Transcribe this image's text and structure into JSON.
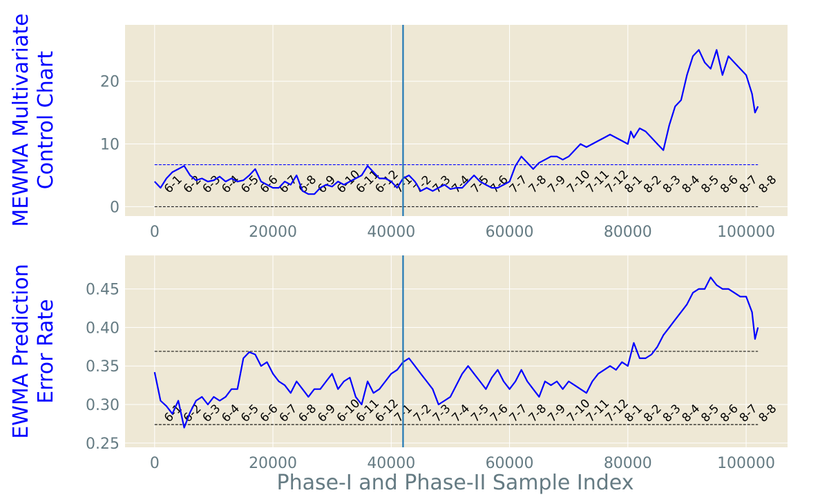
{
  "figure": {
    "xlabel": "Phase-I and Phase-II Sample Index",
    "month_labels": [
      "6-1",
      "6-2",
      "6-3",
      "6-4",
      "6-5",
      "6-6",
      "6-7",
      "6-8",
      "6-9",
      "6-10",
      "6-11",
      "6-12",
      "7-1",
      "7-2",
      "7-3",
      "7-4",
      "7-5",
      "7-6",
      "7-7",
      "7-8",
      "7-9",
      "7-10",
      "7-11",
      "7-12",
      "8-1",
      "8-2",
      "8-3",
      "8-4",
      "8-5",
      "8-6",
      "8-7",
      "8-8"
    ],
    "colors": {
      "background": "#eee8d5",
      "grid": "#ffffff",
      "series": "#0000ff",
      "phase_line": "#1f77b4",
      "tick_text": "#657b83",
      "ylabel_text": "#0000ff"
    }
  },
  "chart_data": [
    {
      "type": "line",
      "ylabel": "MEWMA Multivariate\nControl Chart",
      "xlim": [
        -5000,
        107000
      ],
      "ylim": [
        -1.5,
        29
      ],
      "xticks": [
        0,
        20000,
        40000,
        60000,
        80000,
        100000
      ],
      "xtick_labels": [
        "0",
        "20000",
        "40000",
        "60000",
        "80000",
        "100000"
      ],
      "yticks": [
        0,
        10,
        20
      ],
      "ytick_labels": [
        "0",
        "10",
        "20"
      ],
      "grid": true,
      "phase_boundary_x": 42000,
      "reference_lines": [
        {
          "y": 6.7,
          "style": "dashed",
          "color": "#0000ff",
          "x_range": [
            0,
            102000
          ]
        },
        {
          "y": 0,
          "style": "dashed",
          "color": "#000000",
          "x_range": [
            0,
            102000
          ]
        }
      ],
      "month_label_y": 2.5,
      "series": [
        {
          "x": [
            0,
            1000,
            2000,
            3000,
            4000,
            5000,
            6000,
            7000,
            8000,
            9000,
            10000,
            11000,
            12000,
            13000,
            14000,
            15000,
            16000,
            17000,
            18000,
            19000,
            20000,
            21000,
            22000,
            23000,
            24000,
            25000,
            26000,
            27000,
            28000,
            29000,
            30000,
            31000,
            32000,
            33000,
            34000,
            35000,
            36000,
            37000,
            38000,
            39000,
            40000,
            41000,
            42000,
            43000,
            44000,
            45000,
            46000,
            47000,
            48000,
            49000,
            50000,
            51000,
            52000,
            53000,
            54000,
            55000,
            56000,
            57000,
            58000,
            59000,
            60000,
            61000,
            62000,
            63000,
            64000,
            65000,
            66000,
            67000,
            68000,
            69000,
            70000,
            71000,
            72000,
            73000,
            74000,
            75000,
            76000,
            77000,
            78000,
            79000,
            80000,
            80500,
            81000,
            82000,
            83000,
            84000,
            85000,
            86000,
            87000,
            88000,
            89000,
            90000,
            91000,
            92000,
            93000,
            94000,
            95000,
            96000,
            97000,
            98000,
            99000,
            100000,
            101000,
            101500,
            102000
          ],
          "values": [
            4,
            3,
            4.5,
            5.5,
            6,
            6.5,
            5,
            4.2,
            4.5,
            4,
            4.2,
            4.8,
            4,
            4.5,
            4,
            4.2,
            5,
            6,
            4,
            3.5,
            3,
            3,
            4,
            3.5,
            5,
            2.5,
            2,
            2,
            3,
            3.5,
            3.2,
            4,
            3.5,
            4,
            4.5,
            5,
            6.5,
            5.5,
            4.5,
            4.5,
            4,
            3,
            4.5,
            5,
            4,
            2.5,
            3,
            2.5,
            3,
            3.5,
            2.8,
            3,
            3,
            4,
            5,
            4,
            3.5,
            3,
            3,
            3.5,
            4,
            6.5,
            8,
            7,
            6,
            7,
            7.5,
            8,
            8,
            7.5,
            8,
            9,
            10,
            9.5,
            10,
            10.5,
            11,
            11.5,
            11,
            10.5,
            10,
            12,
            11,
            12.5,
            12,
            11,
            10,
            9,
            13,
            16,
            17,
            21,
            24,
            25,
            23,
            22,
            25,
            21,
            24,
            23,
            22,
            21,
            18,
            15,
            16
          ]
        }
      ]
    },
    {
      "type": "line",
      "ylabel": "EWMA Prediction\nError Rate",
      "xlim": [
        -5000,
        107000
      ],
      "ylim": [
        0.2445,
        0.4935
      ],
      "xticks": [
        0,
        20000,
        40000,
        60000,
        80000,
        100000
      ],
      "xtick_labels": [
        "0",
        "20000",
        "40000",
        "60000",
        "80000",
        "100000"
      ],
      "yticks": [
        0.25,
        0.3,
        0.35,
        0.4,
        0.45
      ],
      "ytick_labels": [
        "0.25",
        "0.30",
        "0.35",
        "0.40",
        "0.45"
      ],
      "grid": true,
      "phase_boundary_x": 42000,
      "reference_lines": [
        {
          "y": 0.369,
          "style": "dashed",
          "color": "#000000",
          "x_range": [
            0,
            102000
          ]
        },
        {
          "y": 0.274,
          "style": "dashed",
          "color": "#000000",
          "x_range": [
            0,
            102000
          ]
        }
      ],
      "month_label_y": 0.28,
      "series": [
        {
          "x": [
            0,
            1000,
            2000,
            3000,
            4000,
            5000,
            6000,
            7000,
            8000,
            9000,
            10000,
            11000,
            12000,
            13000,
            14000,
            15000,
            16000,
            17000,
            18000,
            19000,
            20000,
            21000,
            22000,
            23000,
            24000,
            25000,
            26000,
            27000,
            28000,
            29000,
            30000,
            31000,
            32000,
            33000,
            34000,
            35000,
            36000,
            37000,
            38000,
            39000,
            40000,
            41000,
            42000,
            43000,
            44000,
            45000,
            46000,
            47000,
            48000,
            49000,
            50000,
            51000,
            52000,
            53000,
            54000,
            55000,
            56000,
            57000,
            58000,
            59000,
            60000,
            61000,
            62000,
            63000,
            64000,
            65000,
            66000,
            67000,
            68000,
            69000,
            70000,
            71000,
            72000,
            73000,
            74000,
            75000,
            76000,
            77000,
            78000,
            79000,
            80000,
            81000,
            82000,
            83000,
            84000,
            85000,
            86000,
            87000,
            88000,
            89000,
            90000,
            91000,
            92000,
            93000,
            94000,
            95000,
            96000,
            97000,
            98000,
            99000,
            100000,
            101000,
            101500,
            102000
          ],
          "values": [
            0.342,
            0.305,
            0.298,
            0.288,
            0.305,
            0.27,
            0.29,
            0.305,
            0.31,
            0.3,
            0.31,
            0.305,
            0.31,
            0.32,
            0.32,
            0.36,
            0.368,
            0.365,
            0.35,
            0.355,
            0.34,
            0.33,
            0.325,
            0.315,
            0.33,
            0.32,
            0.31,
            0.32,
            0.32,
            0.33,
            0.34,
            0.32,
            0.33,
            0.335,
            0.31,
            0.3,
            0.33,
            0.315,
            0.32,
            0.33,
            0.34,
            0.345,
            0.355,
            0.36,
            0.35,
            0.34,
            0.33,
            0.32,
            0.3,
            0.305,
            0.31,
            0.325,
            0.34,
            0.35,
            0.34,
            0.33,
            0.32,
            0.335,
            0.345,
            0.33,
            0.32,
            0.33,
            0.345,
            0.33,
            0.32,
            0.31,
            0.33,
            0.325,
            0.33,
            0.32,
            0.33,
            0.325,
            0.32,
            0.315,
            0.33,
            0.34,
            0.345,
            0.35,
            0.345,
            0.355,
            0.35,
            0.38,
            0.36,
            0.36,
            0.365,
            0.375,
            0.39,
            0.4,
            0.41,
            0.42,
            0.43,
            0.445,
            0.45,
            0.45,
            0.465,
            0.455,
            0.45,
            0.45,
            0.445,
            0.44,
            0.44,
            0.42,
            0.385,
            0.4
          ]
        }
      ]
    }
  ]
}
